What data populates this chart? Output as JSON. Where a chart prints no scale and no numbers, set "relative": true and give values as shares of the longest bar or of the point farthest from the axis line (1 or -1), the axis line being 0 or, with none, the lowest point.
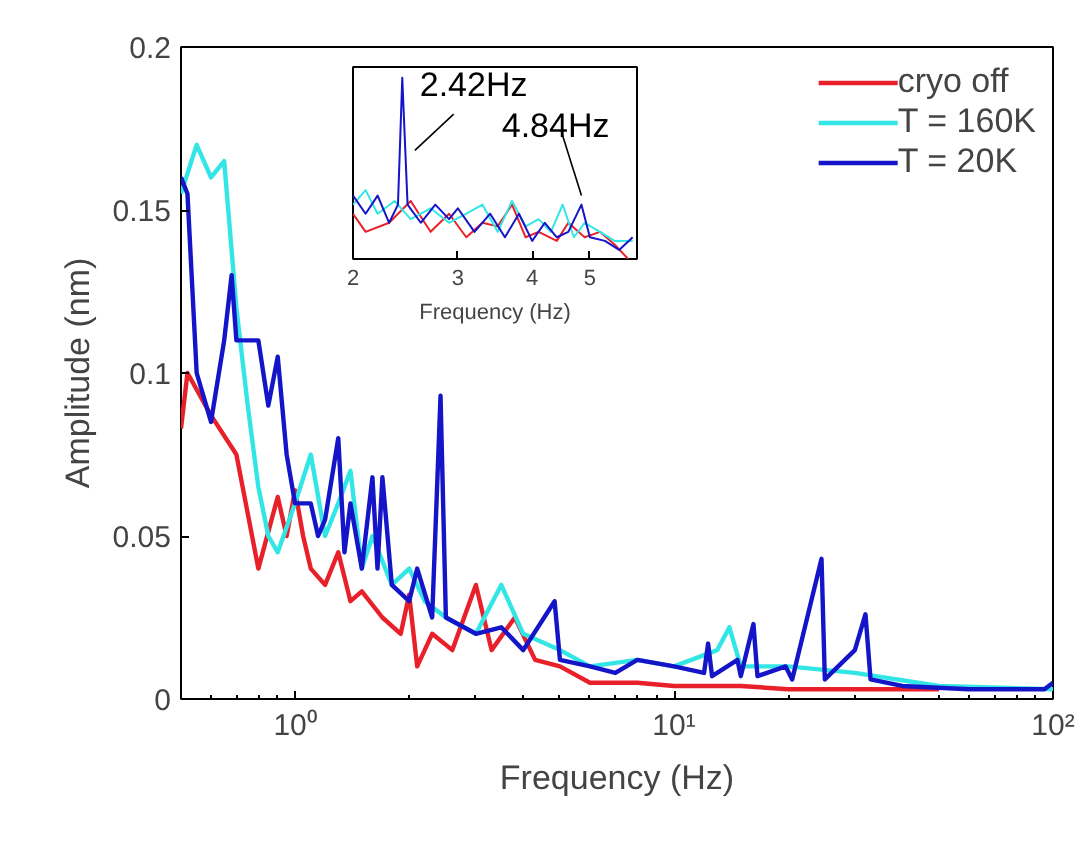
{
  "chart_data": [
    {
      "type": "line",
      "xlabel": "Frequency (Hz)",
      "ylabel": "Amplitude (nm)",
      "log": "x",
      "xlim": [
        0.5,
        100
      ],
      "ylim": [
        0,
        0.2
      ],
      "xticks": [
        {
          "value": 1,
          "label": "10⁰"
        },
        {
          "value": 10,
          "label": "10¹"
        },
        {
          "value": 100,
          "label": "10²"
        }
      ],
      "yticks": [
        0,
        0.05,
        0.1,
        0.15,
        0.2
      ],
      "grid": false,
      "legend": "top right",
      "series": [
        {
          "name": "cryo off",
          "color": "#e8202a",
          "x": [
            0.5,
            0.52,
            0.6,
            0.7,
            0.8,
            0.9,
            0.95,
            1.0,
            1.05,
            1.1,
            1.2,
            1.3,
            1.4,
            1.5,
            1.7,
            1.9,
            2.0,
            2.1,
            2.3,
            2.6,
            3.0,
            3.3,
            3.8,
            4.3,
            5,
            6,
            8,
            10,
            15,
            20,
            30,
            50
          ],
          "values": [
            0.083,
            0.1,
            0.087,
            0.075,
            0.04,
            0.062,
            0.05,
            0.064,
            0.05,
            0.04,
            0.035,
            0.045,
            0.03,
            0.033,
            0.025,
            0.02,
            0.032,
            0.01,
            0.02,
            0.015,
            0.035,
            0.015,
            0.025,
            0.012,
            0.01,
            0.005,
            0.005,
            0.004,
            0.004,
            0.003,
            0.003,
            0.003
          ]
        },
        {
          "name": "T = 160K",
          "color": "#33e6e6",
          "x": [
            0.5,
            0.55,
            0.6,
            0.65,
            0.7,
            0.75,
            0.8,
            0.85,
            0.9,
            1.0,
            1.1,
            1.2,
            1.3,
            1.4,
            1.5,
            1.6,
            1.8,
            2.0,
            2.2,
            2.5,
            3,
            3.5,
            4,
            5,
            6,
            8,
            10,
            13,
            14,
            15,
            20,
            30,
            50,
            100
          ],
          "values": [
            0.155,
            0.17,
            0.16,
            0.165,
            0.12,
            0.09,
            0.065,
            0.05,
            0.045,
            0.06,
            0.075,
            0.05,
            0.06,
            0.07,
            0.04,
            0.05,
            0.035,
            0.04,
            0.03,
            0.025,
            0.02,
            0.035,
            0.02,
            0.015,
            0.01,
            0.012,
            0.01,
            0.015,
            0.022,
            0.01,
            0.01,
            0.008,
            0.004,
            0.003
          ]
        },
        {
          "name": "T = 20K",
          "color": "#1414c8",
          "x": [
            0.5,
            0.52,
            0.55,
            0.6,
            0.65,
            0.68,
            0.7,
            0.8,
            0.85,
            0.9,
            0.95,
            1.0,
            1.1,
            1.15,
            1.2,
            1.3,
            1.35,
            1.4,
            1.5,
            1.6,
            1.65,
            1.7,
            1.8,
            2.0,
            2.1,
            2.3,
            2.42,
            2.5,
            3,
            3.5,
            4,
            4.84,
            5.0,
            6,
            7,
            8,
            10,
            12,
            12.3,
            12.6,
            14.7,
            15,
            16.2,
            16.6,
            19.7,
            20.5,
            24.5,
            25,
            30,
            32,
            33,
            40,
            60,
            95,
            100
          ],
          "values": [
            0.16,
            0.155,
            0.1,
            0.085,
            0.11,
            0.13,
            0.11,
            0.11,
            0.09,
            0.105,
            0.075,
            0.06,
            0.06,
            0.05,
            0.055,
            0.08,
            0.045,
            0.06,
            0.04,
            0.068,
            0.04,
            0.068,
            0.035,
            0.03,
            0.04,
            0.025,
            0.093,
            0.025,
            0.02,
            0.022,
            0.015,
            0.03,
            0.012,
            0.01,
            0.008,
            0.012,
            0.01,
            0.008,
            0.017,
            0.007,
            0.012,
            0.007,
            0.023,
            0.007,
            0.01,
            0.006,
            0.043,
            0.006,
            0.015,
            0.026,
            0.006,
            0.004,
            0.003,
            0.003,
            0.005
          ]
        }
      ]
    },
    {
      "type": "line",
      "relative": true,
      "xlabel": "Frequency (Hz)",
      "log": "x",
      "xlim": [
        2,
        6
      ],
      "xticks": [
        2,
        3,
        4,
        5
      ],
      "tick_labels": "x",
      "grid": false,
      "annotations": [
        {
          "text": "2.42Hz",
          "x": 2.42,
          "y": 1
        },
        {
          "text": "4.84Hz",
          "x": 4.84,
          "y": 0.3
        }
      ],
      "series": [
        {
          "color": "#e8202a",
          "x": [
            2.0,
            2.1,
            2.3,
            2.5,
            2.7,
            2.9,
            3.1,
            3.3,
            3.5,
            3.7,
            3.9,
            4.1,
            4.4,
            4.6,
            4.9,
            5.2,
            5.5,
            5.8
          ],
          "values": [
            0.25,
            0.15,
            0.2,
            0.32,
            0.15,
            0.25,
            0.12,
            0.2,
            0.18,
            0.3,
            0.12,
            0.15,
            0.1,
            0.2,
            0.12,
            0.15,
            0.08,
            0.0
          ]
        },
        {
          "color": "#33e6e6",
          "x": [
            2.0,
            2.1,
            2.2,
            2.35,
            2.5,
            2.7,
            2.9,
            3.1,
            3.3,
            3.5,
            3.7,
            3.9,
            4.1,
            4.3,
            4.5,
            4.7,
            4.9,
            5.2,
            5.5,
            5.9
          ],
          "values": [
            0.3,
            0.38,
            0.25,
            0.32,
            0.22,
            0.28,
            0.2,
            0.25,
            0.3,
            0.15,
            0.32,
            0.18,
            0.22,
            0.15,
            0.3,
            0.12,
            0.2,
            0.15,
            0.1,
            0.1
          ]
        },
        {
          "color": "#1414c8",
          "x": [
            2.0,
            2.1,
            2.2,
            2.3,
            2.38,
            2.42,
            2.47,
            2.6,
            2.75,
            2.9,
            3.0,
            3.2,
            3.4,
            3.6,
            3.8,
            4.0,
            4.2,
            4.4,
            4.6,
            4.84,
            5.0,
            5.3,
            5.6,
            5.9
          ],
          "values": [
            0.35,
            0.25,
            0.35,
            0.2,
            0.3,
            1,
            0.3,
            0.2,
            0.3,
            0.22,
            0.28,
            0.15,
            0.25,
            0.12,
            0.25,
            0.1,
            0.2,
            0.12,
            0.15,
            0.3,
            0.12,
            0.1,
            0.05,
            0.12
          ]
        }
      ]
    }
  ]
}
